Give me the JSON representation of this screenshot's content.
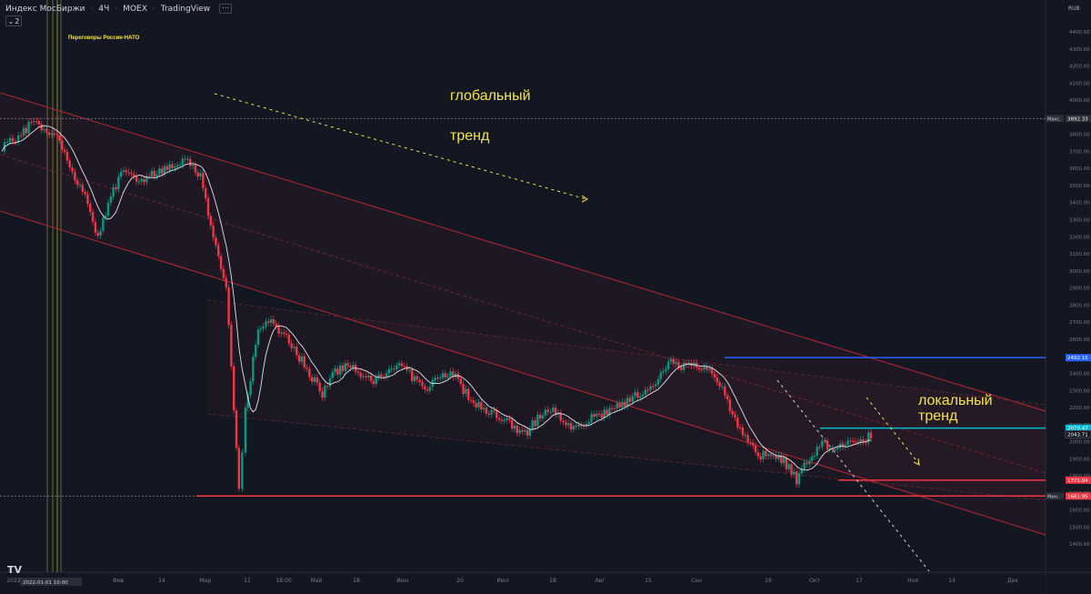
{
  "header": {
    "symbol": "Индекс МосБиржи",
    "interval": "4Ч",
    "exchange": "MOEX",
    "source": "TradingView",
    "indicators_count": "2"
  },
  "logo": "TV",
  "chart_data": {
    "type": "candlestick",
    "currency_label": "RUB",
    "ylim": [
      1300,
      4400
    ],
    "y_ticks": [
      1400,
      1500,
      1600,
      1700,
      1800,
      1900,
      2000,
      2100,
      2200,
      2300,
      2400,
      2500,
      2600,
      2700,
      2800,
      2900,
      3000,
      3100,
      3200,
      3300,
      3400,
      3500,
      3600,
      3700,
      3800,
      3900,
      4000,
      4100,
      4200,
      4300,
      4400
    ],
    "x_labels": [
      "2022",
      "Фев",
      "14",
      "Мар",
      "11",
      "18:00",
      "Май",
      "18",
      "Июн",
      "20",
      "Июл",
      "18",
      "Авг",
      "15",
      "Сен",
      "19",
      "Окт",
      "17",
      "Ноя",
      "14",
      "Дек"
    ],
    "price_path": [
      [
        0,
        3730
      ],
      [
        3,
        3790
      ],
      [
        5,
        3880
      ],
      [
        7,
        3830
      ],
      [
        9,
        3760
      ],
      [
        11,
        3560
      ],
      [
        13,
        3420
      ],
      [
        15,
        3210
      ],
      [
        17,
        3440
      ],
      [
        19,
        3600
      ],
      [
        21,
        3520
      ],
      [
        23,
        3560
      ],
      [
        25,
        3580
      ],
      [
        27,
        3640
      ],
      [
        29,
        3660
      ],
      [
        31,
        3560
      ],
      [
        33,
        3200
      ],
      [
        35,
        2900
      ],
      [
        37,
        1700
      ],
      [
        38,
        2200
      ],
      [
        40,
        2650
      ],
      [
        42,
        2720
      ],
      [
        44,
        2620
      ],
      [
        46,
        2520
      ],
      [
        48,
        2400
      ],
      [
        50,
        2270
      ],
      [
        52,
        2410
      ],
      [
        54,
        2450
      ],
      [
        56,
        2380
      ],
      [
        58,
        2350
      ],
      [
        60,
        2420
      ],
      [
        62,
        2440
      ],
      [
        64,
        2380
      ],
      [
        66,
        2300
      ],
      [
        68,
        2380
      ],
      [
        70,
        2420
      ],
      [
        72,
        2300
      ],
      [
        74,
        2220
      ],
      [
        76,
        2180
      ],
      [
        78,
        2140
      ],
      [
        80,
        2080
      ],
      [
        82,
        2060
      ],
      [
        84,
        2160
      ],
      [
        86,
        2200
      ],
      [
        88,
        2100
      ],
      [
        90,
        2080
      ],
      [
        92,
        2160
      ],
      [
        94,
        2170
      ],
      [
        96,
        2200
      ],
      [
        98,
        2260
      ],
      [
        100,
        2290
      ],
      [
        102,
        2360
      ],
      [
        104,
        2470
      ],
      [
        106,
        2430
      ],
      [
        108,
        2450
      ],
      [
        110,
        2440
      ],
      [
        112,
        2350
      ],
      [
        114,
        2160
      ],
      [
        116,
        2040
      ],
      [
        118,
        1920
      ],
      [
        120,
        1930
      ],
      [
        122,
        1880
      ],
      [
        124,
        1780
      ],
      [
        126,
        1900
      ],
      [
        128,
        1980
      ],
      [
        130,
        1960
      ],
      [
        132,
        1990
      ],
      [
        134,
        2010
      ],
      [
        136,
        2040
      ]
    ],
    "lines": [
      {
        "name": "Макс.",
        "value": 3892.33,
        "color": "#787b86",
        "style": "dashed"
      },
      {
        "name": "Мин.",
        "value": 1681.9,
        "color": "#787b86",
        "style": "dashed"
      },
      {
        "name": "",
        "value": 2492.15,
        "color": "#2962ff",
        "style": "solid"
      },
      {
        "name": "",
        "value": 2079.47,
        "color": "#00bcd4",
        "style": "solid"
      },
      {
        "name": "",
        "value": 1775.04,
        "color": "#f23645",
        "style": "solid"
      },
      {
        "name": "",
        "value": 1681.95,
        "color": "#f23645",
        "style": "solid"
      }
    ],
    "price_labels": [
      {
        "text": "Макс.",
        "value": "3892.33",
        "bg": "#2a2e39"
      },
      {
        "text": "",
        "value": "2492.15",
        "bg": "#2962ff"
      },
      {
        "text": "",
        "value": "2079.47",
        "bg": "#00bcd4"
      },
      {
        "text": "",
        "value": "2043.71",
        "bg": "#131722"
      },
      {
        "text": "",
        "value": "1775.04",
        "bg": "#f23645"
      },
      {
        "text": "Мин.",
        "value": "1681.90",
        "bg": "#2a2e39"
      },
      {
        "text": "",
        "value": "1681.95",
        "bg": "#f23645"
      }
    ],
    "annotations": [
      {
        "text": "Переговоры Россия-НАТО",
        "color": "#f5e642"
      },
      {
        "text": "глобальный",
        "color": "#f5e642"
      },
      {
        "text": "тренд",
        "color": "#f5e642"
      },
      {
        "text": "локальный",
        "color": "#f5e642"
      },
      {
        "text": "тренд",
        "color": "#f5e642"
      }
    ],
    "date_label": "2022-01-01 10:00"
  }
}
